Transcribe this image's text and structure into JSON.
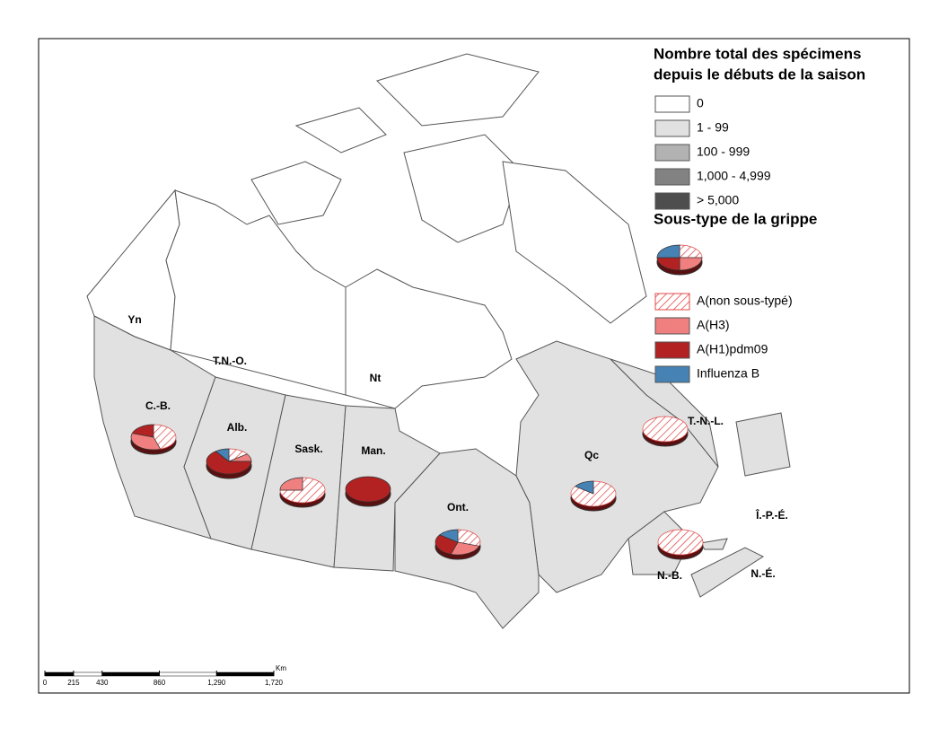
{
  "legend": {
    "title_line1": "Nombre total des spécimens",
    "title_line2": "depuis le débuts de la saison",
    "classes": [
      {
        "label": "0",
        "color": "#ffffff"
      },
      {
        "label": "1 - 99",
        "color": "#e1e1e1"
      },
      {
        "label": "100 - 999",
        "color": "#b2b2b2"
      },
      {
        "label": "1,000 - 4,999",
        "color": "#828282"
      },
      {
        "label": "> 5,000",
        "color": "#4e4e4e"
      }
    ],
    "subtype_title": "Sous-type de la grippe",
    "subtypes": [
      {
        "name": "A(non sous-typé)",
        "color": "#e04848",
        "hatched": true
      },
      {
        "name": "A(H3)",
        "color": "#f08080"
      },
      {
        "name": "A(H1)pdm09",
        "color": "#b22222"
      },
      {
        "name": "Influenza B",
        "color": "#4682b4"
      }
    ]
  },
  "regions": [
    {
      "label": "Yn",
      "class": 0
    },
    {
      "label": "T.N.-O.",
      "class": 0
    },
    {
      "label": "Nt",
      "class": 0
    },
    {
      "label": "C.-B.",
      "class": 1,
      "shares": [
        45,
        35,
        20,
        0
      ]
    },
    {
      "label": "Alb.",
      "class": 1,
      "shares": [
        15,
        10,
        65,
        10
      ]
    },
    {
      "label": "Sask.",
      "class": 1,
      "shares": [
        75,
        25,
        0,
        0
      ]
    },
    {
      "label": "Man.",
      "class": 1,
      "shares": [
        0,
        0,
        100,
        0
      ]
    },
    {
      "label": "Ont.",
      "class": 1,
      "shares": [
        30,
        25,
        30,
        15
      ]
    },
    {
      "label": "Qc",
      "class": 1,
      "shares": [
        85,
        0,
        0,
        15
      ]
    },
    {
      "label": "T.-N.-L.",
      "class": 1,
      "shares": [
        100,
        0,
        0,
        0
      ]
    },
    {
      "label": "Î.-P.-É.",
      "class": 1
    },
    {
      "label": "N.-B.",
      "class": 1,
      "shares": [
        100,
        0,
        0,
        0
      ]
    },
    {
      "label": "N.-É.",
      "class": 1
    }
  ],
  "scale_bar": {
    "unit": "Km",
    "ticks": [
      0,
      215,
      430,
      860,
      {
        "value": 1290,
        "label": "1,290"
      },
      {
        "value": 1720,
        "label": "1,720"
      }
    ]
  }
}
